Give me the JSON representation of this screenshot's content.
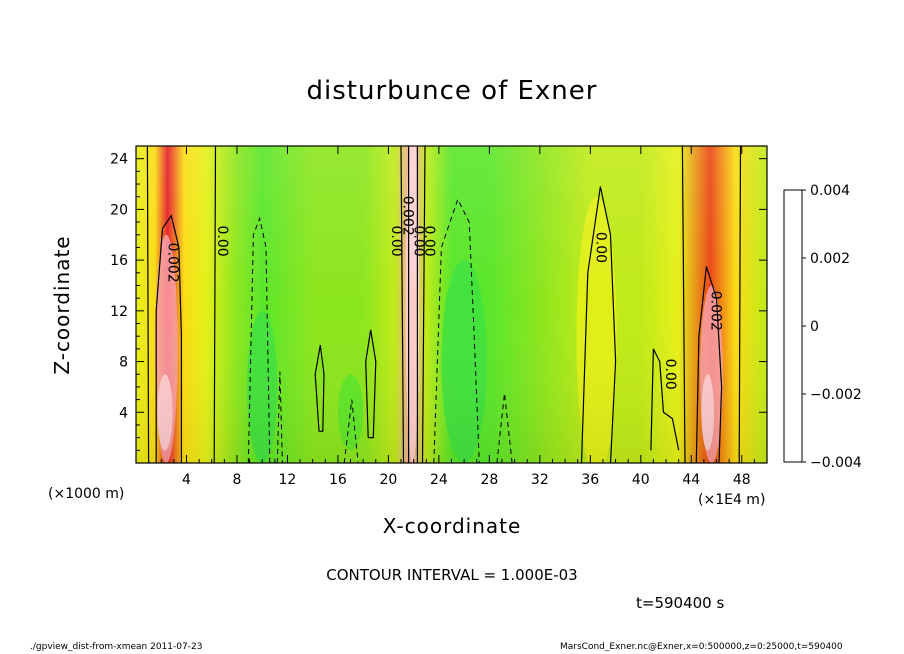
{
  "chart_data": {
    "type": "heatmap",
    "title": "disturbunce of Exner",
    "xlabel": "X-coordinate",
    "ylabel": "Z-coordinate",
    "x_unit_left": "(×1000 m)",
    "x_unit_right": "(×1E4 m)",
    "xlim": [
      0,
      50
    ],
    "ylim": [
      0,
      25
    ],
    "x_ticks": [
      "4",
      "8",
      "12",
      "16",
      "20",
      "24",
      "28",
      "32",
      "36",
      "40",
      "44",
      "48"
    ],
    "y_ticks": [
      "4",
      "8",
      "12",
      "16",
      "20",
      "24"
    ],
    "colorbar": {
      "range": [
        -0.004,
        0.004
      ],
      "tick_labels": [
        "0.004",
        "0.002",
        "0",
        "−0.002",
        "−0.004"
      ],
      "colors": [
        "#7a0aa0",
        "#1a1ab4",
        "#2a50e6",
        "#2a8cf0",
        "#18c8f0",
        "#28e6dc",
        "#30e6aa",
        "#40e040",
        "#5ae62a",
        "#8ce61e",
        "#c0ea18",
        "#e6f018",
        "#fadc14",
        "#f5b414",
        "#f08214",
        "#ea4614",
        "#e61e28",
        "#f06470",
        "#f8a0a8",
        "#fcd2d2"
      ]
    },
    "contour_labels": [
      "0.002",
      "0.00",
      "0.00",
      "0.002",
      "0.00",
      "0.00",
      "0.002",
      "0.00",
      "0.00"
    ],
    "field_description_columns": [
      {
        "x": 0,
        "value": 0.0006
      },
      {
        "x": 1.5,
        "value": 0.0012
      },
      {
        "x": 2.5,
        "value": 0.0026
      },
      {
        "x": 3.8,
        "value": 0.0012
      },
      {
        "x": 5.5,
        "value": 0.0004
      },
      {
        "x": 8,
        "value": -0.0002
      },
      {
        "x": 10,
        "value": -0.0006
      },
      {
        "x": 14,
        "value": -0.0003
      },
      {
        "x": 18,
        "value": -0.0002
      },
      {
        "x": 20.5,
        "value": 0.0002
      },
      {
        "x": 21.8,
        "value": 0.0034
      },
      {
        "x": 23,
        "value": 0.0002
      },
      {
        "x": 25,
        "value": -0.0008
      },
      {
        "x": 28,
        "value": -0.0005
      },
      {
        "x": 32,
        "value": -0.0001
      },
      {
        "x": 36,
        "value": 0.0002
      },
      {
        "x": 40,
        "value": 0.0003
      },
      {
        "x": 43,
        "value": 0.0005
      },
      {
        "x": 45.5,
        "value": 0.0024
      },
      {
        "x": 47.5,
        "value": 0.001
      },
      {
        "x": 50,
        "value": 0.0003
      }
    ]
  },
  "annotations": {
    "contour_interval": "CONTOUR INTERVAL = 1.000E-03",
    "time": "t=590400 s",
    "footer_left": "./gpview_dist-from-xmean  2011-07-23",
    "footer_right": "MarsCond_Exner.nc@Exner,x=0:500000,z=0:25000,t=590400"
  }
}
